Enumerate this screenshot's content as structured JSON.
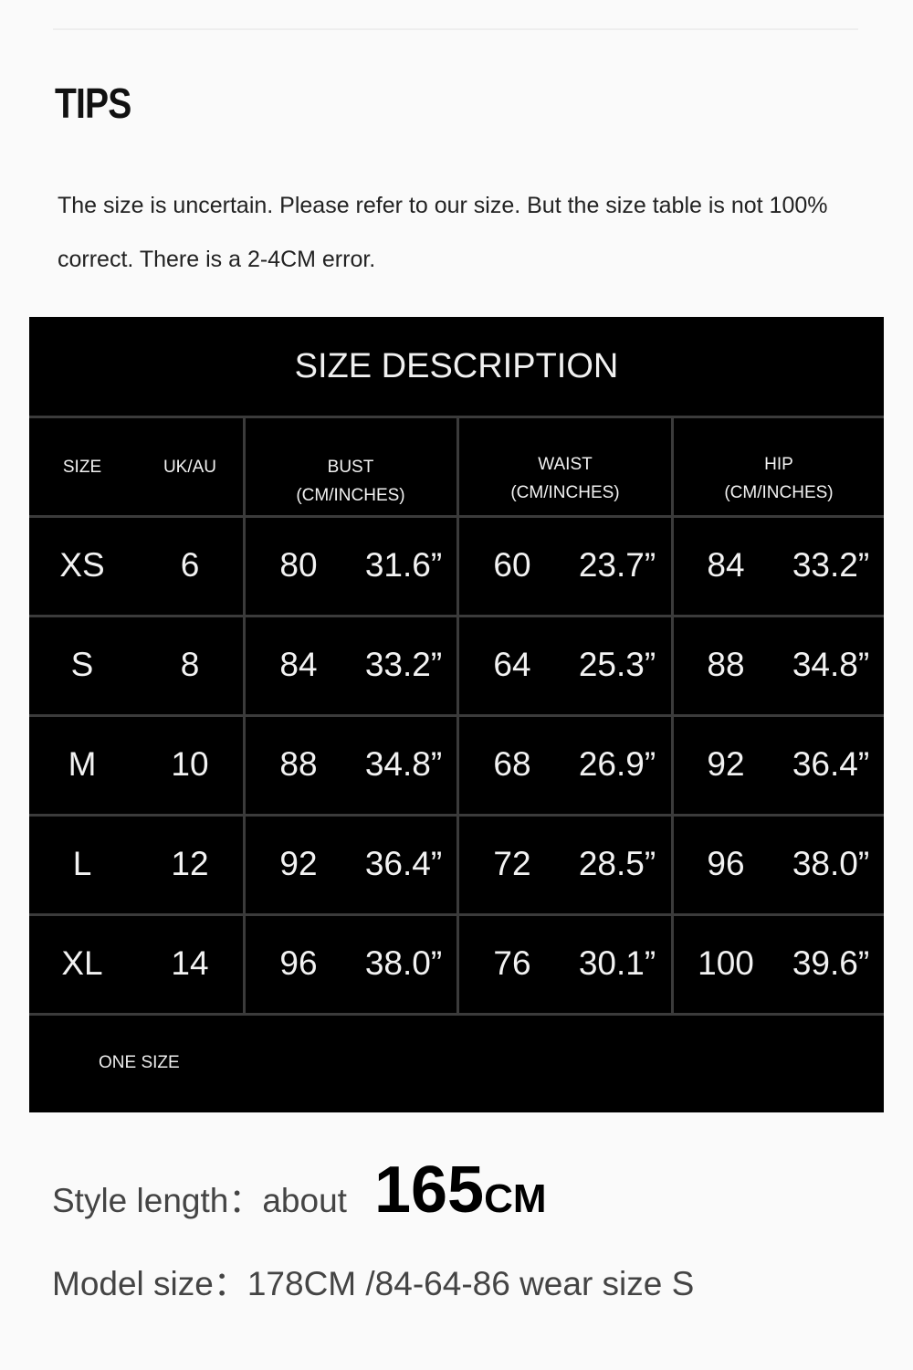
{
  "tips": {
    "heading": "TIPS",
    "note": "The size is uncertain. Please refer to our size. But the size table is not 100% correct. There is a 2-4CM error."
  },
  "size_table": {
    "title": "SIZE DESCRIPTION",
    "headers": {
      "size": "SIZE",
      "uk_au": "UK/AU",
      "bust": "BUST",
      "waist": "WAIST",
      "hip": "HIP",
      "unit": "(CM/INCHES)"
    },
    "rows": [
      {
        "size": "XS",
        "uk": "6",
        "bust_cm": "80",
        "bust_in": "31.6”",
        "waist_cm": "60",
        "waist_in": "23.7”",
        "hip_cm": "84",
        "hip_in": "33.2”"
      },
      {
        "size": "S",
        "uk": "8",
        "bust_cm": "84",
        "bust_in": "33.2”",
        "waist_cm": "64",
        "waist_in": "25.3”",
        "hip_cm": "88",
        "hip_in": "34.8”"
      },
      {
        "size": "M",
        "uk": "10",
        "bust_cm": "88",
        "bust_in": "34.8”",
        "waist_cm": "68",
        "waist_in": "26.9”",
        "hip_cm": "92",
        "hip_in": "36.4”"
      },
      {
        "size": "L",
        "uk": "12",
        "bust_cm": "92",
        "bust_in": "36.4”",
        "waist_cm": "72",
        "waist_in": "28.5”",
        "hip_cm": "96",
        "hip_in": "38.0”"
      },
      {
        "size": "XL",
        "uk": "14",
        "bust_cm": "96",
        "bust_in": "38.0”",
        "waist_cm": "76",
        "waist_in": "30.1”",
        "hip_cm": "100",
        "hip_in": "39.6”"
      }
    ],
    "one_size": "ONE SIZE"
  },
  "style_length": {
    "label": "Style length：about",
    "value": "165",
    "unit": "CM"
  },
  "model_size": "Model size：178CM /84-64-86 wear size S"
}
